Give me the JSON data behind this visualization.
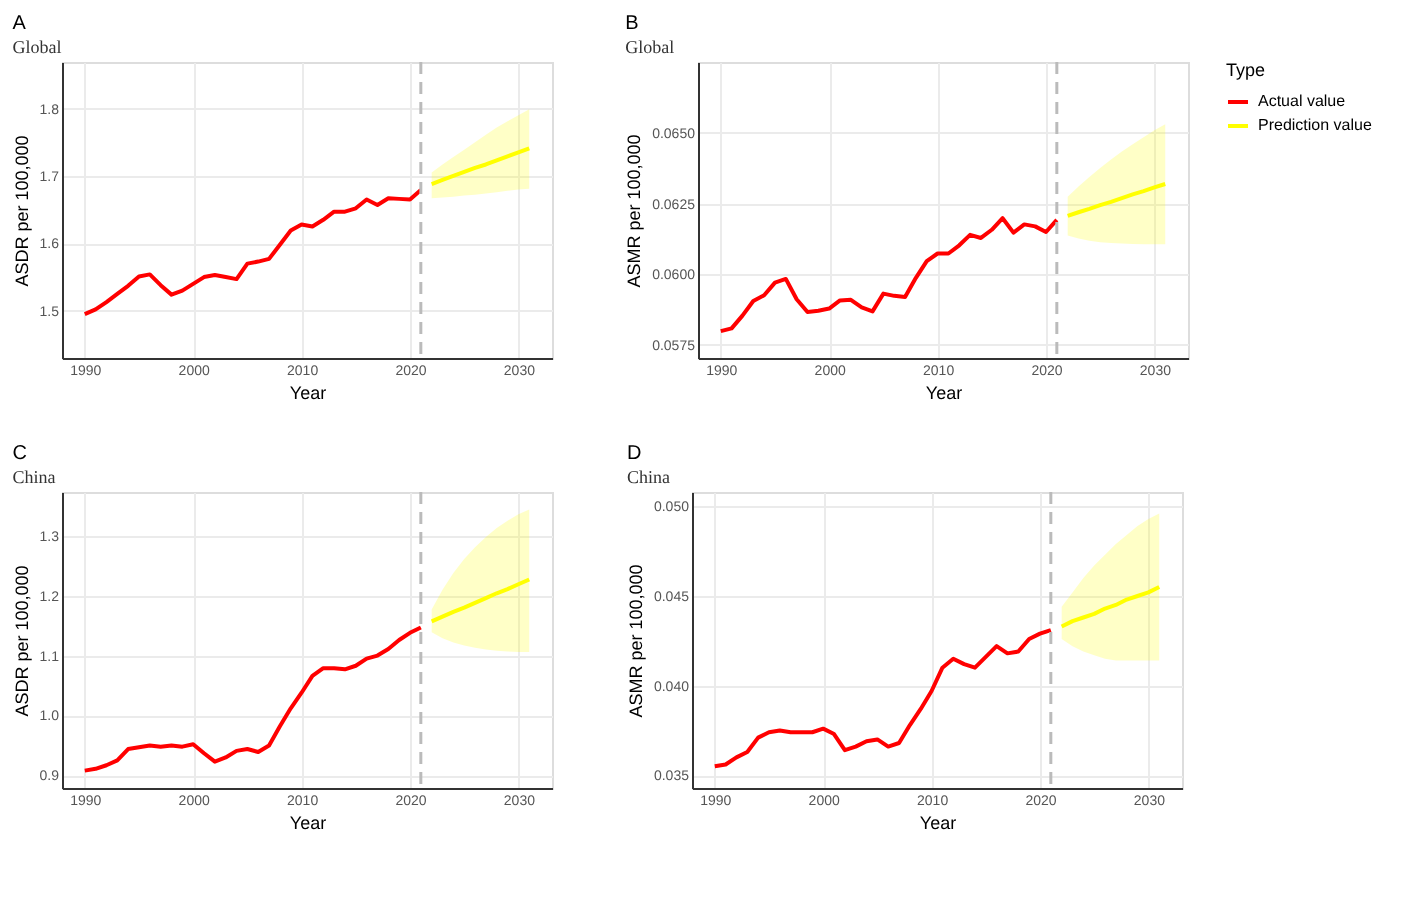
{
  "chart_data": [
    {
      "type": "line",
      "title": "Global",
      "annotations": [
        "A"
      ],
      "xlabel": "Year",
      "ylabel": "ASDR per 100,000",
      "legend_title": "Type",
      "legend": "right",
      "grid": true,
      "xlim": [
        1987.9,
        2033.1
      ],
      "xticks": [
        1990,
        2000,
        2010,
        2020,
        2030
      ],
      "ylim": [
        1.43,
        1.869
      ],
      "yticks": [
        1.5,
        1.6,
        1.7,
        1.8
      ],
      "ref_lines": [
        {
          "axis": "x",
          "value": 2021,
          "color": "#bbbbbb",
          "line_style": "dashed"
        }
      ],
      "series": [
        {
          "name": "Actual value",
          "color": "#ff0000",
          "x": [
            1990,
            1991,
            1992,
            1993,
            1994,
            1995,
            1996,
            1997,
            1998,
            1999,
            2000,
            2001,
            2002,
            2003,
            2004,
            2005,
            2006,
            2007,
            2008,
            2009,
            2010,
            2011,
            2012,
            2013,
            2014,
            2015,
            2016,
            2017,
            2018,
            2019,
            2020,
            2021
          ],
          "values": [
            1.495,
            1.502,
            1.513,
            1.525,
            1.537,
            1.551,
            1.554,
            1.538,
            1.524,
            1.53,
            1.54,
            1.55,
            1.553,
            1.55,
            1.547,
            1.57,
            1.573,
            1.577,
            1.598,
            1.619,
            1.628,
            1.625,
            1.635,
            1.647,
            1.647,
            1.652,
            1.665,
            1.657,
            1.667,
            1.666,
            1.665,
            1.679
          ]
        },
        {
          "name": "Prediction value",
          "color": "#ffff00",
          "x": [
            2022,
            2023,
            2024,
            2025,
            2026,
            2027,
            2028,
            2029,
            2030,
            2031
          ],
          "values": [
            1.688,
            1.694,
            1.7,
            1.706,
            1.712,
            1.717,
            1.723,
            1.729,
            1.735,
            1.741
          ],
          "lower": [
            1.667,
            1.668,
            1.669,
            1.671,
            1.672,
            1.674,
            1.676,
            1.678,
            1.68,
            1.681
          ],
          "upper": [
            1.705,
            1.717,
            1.728,
            1.739,
            1.75,
            1.761,
            1.772,
            1.781,
            1.79,
            1.799
          ]
        }
      ]
    },
    {
      "type": "line",
      "title": "Global",
      "annotations": [
        "B"
      ],
      "xlabel": "Year",
      "ylabel": "ASMR per 100,000",
      "grid": true,
      "xlim": [
        1987.9,
        2033.1
      ],
      "xticks": [
        1990,
        2000,
        2010,
        2020,
        2030
      ],
      "ylim": [
        0.05703,
        0.06751
      ],
      "yticks": [
        {
          "value": 0.0575,
          "label": "0.0575"
        },
        {
          "value": 0.06,
          "label": "0.0600"
        },
        {
          "value": 0.0625,
          "label": "0.0625"
        },
        {
          "value": 0.065,
          "label": "0.0650"
        }
      ],
      "ref_lines": [
        {
          "axis": "x",
          "value": 2021,
          "color": "#bbbbbb",
          "line_style": "dashed"
        }
      ],
      "series": [
        {
          "name": "Actual value",
          "color": "#ff0000",
          "x": [
            1990,
            1991,
            1992,
            1993,
            1994,
            1995,
            1996,
            1997,
            1998,
            1999,
            2000,
            2001,
            2002,
            2003,
            2004,
            2005,
            2006,
            2007,
            2008,
            2009,
            2010,
            2011,
            2012,
            2013,
            2014,
            2015,
            2016,
            2017,
            2018,
            2019,
            2020,
            2021
          ],
          "values": [
            0.05798,
            0.05808,
            0.05853,
            0.05905,
            0.05925,
            0.0597,
            0.05983,
            0.05911,
            0.05866,
            0.0587,
            0.05878,
            0.05907,
            0.05909,
            0.05882,
            0.05868,
            0.05931,
            0.05923,
            0.05919,
            0.05987,
            0.06046,
            0.06073,
            0.06073,
            0.06102,
            0.06139,
            0.06128,
            0.06157,
            0.06198,
            0.06147,
            0.06176,
            0.06169,
            0.06149,
            0.06192
          ]
        },
        {
          "name": "Prediction value",
          "color": "#ffff00",
          "x": [
            2022,
            2023,
            2024,
            2025,
            2026,
            2027,
            2028,
            2029,
            2030,
            2031
          ],
          "values": [
            0.06206,
            0.06219,
            0.06231,
            0.06244,
            0.06256,
            0.06269,
            0.06282,
            0.06294,
            0.06307,
            0.06319
          ],
          "lower": [
            0.06137,
            0.06126,
            0.06118,
            0.06113,
            0.0611,
            0.06108,
            0.06107,
            0.06106,
            0.06106,
            0.06106
          ],
          "upper": [
            0.06274,
            0.0631,
            0.06344,
            0.06376,
            0.06406,
            0.06434,
            0.0646,
            0.06485,
            0.06509,
            0.06531
          ]
        }
      ]
    },
    {
      "type": "line",
      "title": "China",
      "annotations": [
        "C"
      ],
      "xlabel": "Year",
      "ylabel": "ASDR per 100,000",
      "grid": true,
      "xlim": [
        1987.9,
        2033.1
      ],
      "xticks": [
        1990,
        2000,
        2010,
        2020,
        2030
      ],
      "ylim": [
        0.879,
        1.373
      ],
      "yticks": [
        0.9,
        {
          "value": 1.0,
          "label": "1.0"
        },
        1.1,
        1.2,
        1.3
      ],
      "ref_lines": [
        {
          "axis": "x",
          "value": 2021,
          "color": "#bbbbbb",
          "line_style": "dashed"
        }
      ],
      "series": [
        {
          "name": "Actual value",
          "color": "#ff0000",
          "x": [
            1990,
            1991,
            1992,
            1993,
            1994,
            1995,
            1996,
            1997,
            1998,
            1999,
            2000,
            2001,
            2002,
            2003,
            2004,
            2005,
            2006,
            2007,
            2008,
            2009,
            2010,
            2011,
            2012,
            2013,
            2014,
            2015,
            2016,
            2017,
            2018,
            2019,
            2020,
            2021
          ],
          "values": [
            0.908,
            0.911,
            0.917,
            0.925,
            0.944,
            0.947,
            0.95,
            0.948,
            0.95,
            0.948,
            0.952,
            0.937,
            0.923,
            0.93,
            0.941,
            0.944,
            0.939,
            0.95,
            0.982,
            1.012,
            1.038,
            1.066,
            1.079,
            1.079,
            1.077,
            1.083,
            1.095,
            1.1,
            1.111,
            1.126,
            1.138,
            1.147
          ]
        },
        {
          "name": "Prediction value",
          "color": "#ffff00",
          "x": [
            2022,
            2023,
            2024,
            2025,
            2026,
            2027,
            2028,
            2029,
            2030,
            2031
          ],
          "values": [
            1.157,
            1.165,
            1.173,
            1.18,
            1.188,
            1.196,
            1.204,
            1.211,
            1.219,
            1.227
          ],
          "lower": [
            1.139,
            1.129,
            1.122,
            1.117,
            1.113,
            1.11,
            1.108,
            1.107,
            1.106,
            1.106
          ],
          "upper": [
            1.177,
            1.21,
            1.238,
            1.261,
            1.281,
            1.298,
            1.313,
            1.325,
            1.336,
            1.344
          ]
        }
      ]
    },
    {
      "type": "line",
      "title": "China",
      "annotations": [
        "D"
      ],
      "xlabel": "Year",
      "ylabel": "ASMR per 100,000",
      "grid": true,
      "xlim": [
        1987.9,
        2033.1
      ],
      "xticks": [
        1990,
        2000,
        2010,
        2020,
        2030
      ],
      "ylim": [
        0.03429,
        0.0508
      ],
      "yticks": [
        {
          "value": 0.035,
          "label": "0.035"
        },
        {
          "value": 0.04,
          "label": "0.040"
        },
        {
          "value": 0.045,
          "label": "0.045"
        },
        {
          "value": 0.05,
          "label": "0.050"
        }
      ],
      "ref_lines": [
        {
          "axis": "x",
          "value": 2021,
          "color": "#bbbbbb",
          "line_style": "dashed"
        }
      ],
      "series": [
        {
          "name": "Actual value",
          "color": "#ff0000",
          "x": [
            1990,
            1991,
            1992,
            1993,
            1994,
            1995,
            1996,
            1997,
            1998,
            1999,
            2000,
            2001,
            2002,
            2003,
            2004,
            2005,
            2006,
            2007,
            2008,
            2009,
            2010,
            2011,
            2012,
            2013,
            2014,
            2015,
            2016,
            2017,
            2018,
            2019,
            2020,
            2021
          ],
          "values": [
            0.0355,
            0.0356,
            0.036,
            0.0363,
            0.0371,
            0.0374,
            0.0375,
            0.0374,
            0.0374,
            0.0374,
            0.0376,
            0.0373,
            0.0364,
            0.0366,
            0.0369,
            0.037,
            0.0366,
            0.0368,
            0.0378,
            0.0387,
            0.0397,
            0.041,
            0.0415,
            0.0412,
            0.041,
            0.0416,
            0.0422,
            0.0418,
            0.0419,
            0.0426,
            0.0429,
            0.0431
          ]
        },
        {
          "name": "Prediction value",
          "color": "#ffff00",
          "x": [
            2022,
            2023,
            2024,
            2025,
            2026,
            2027,
            2028,
            2029,
            2030,
            2031
          ],
          "values": [
            0.0433,
            0.0436,
            0.0438,
            0.044,
            0.0443,
            0.0445,
            0.0448,
            0.045,
            0.0452,
            0.0455
          ],
          "lower": [
            0.0426,
            0.0422,
            0.0419,
            0.0417,
            0.0415,
            0.0414,
            0.0414,
            0.0414,
            0.0414,
            0.0414
          ],
          "upper": [
            0.0444,
            0.0452,
            0.046,
            0.0467,
            0.0473,
            0.0479,
            0.0484,
            0.0489,
            0.0493,
            0.0496
          ]
        }
      ]
    }
  ]
}
